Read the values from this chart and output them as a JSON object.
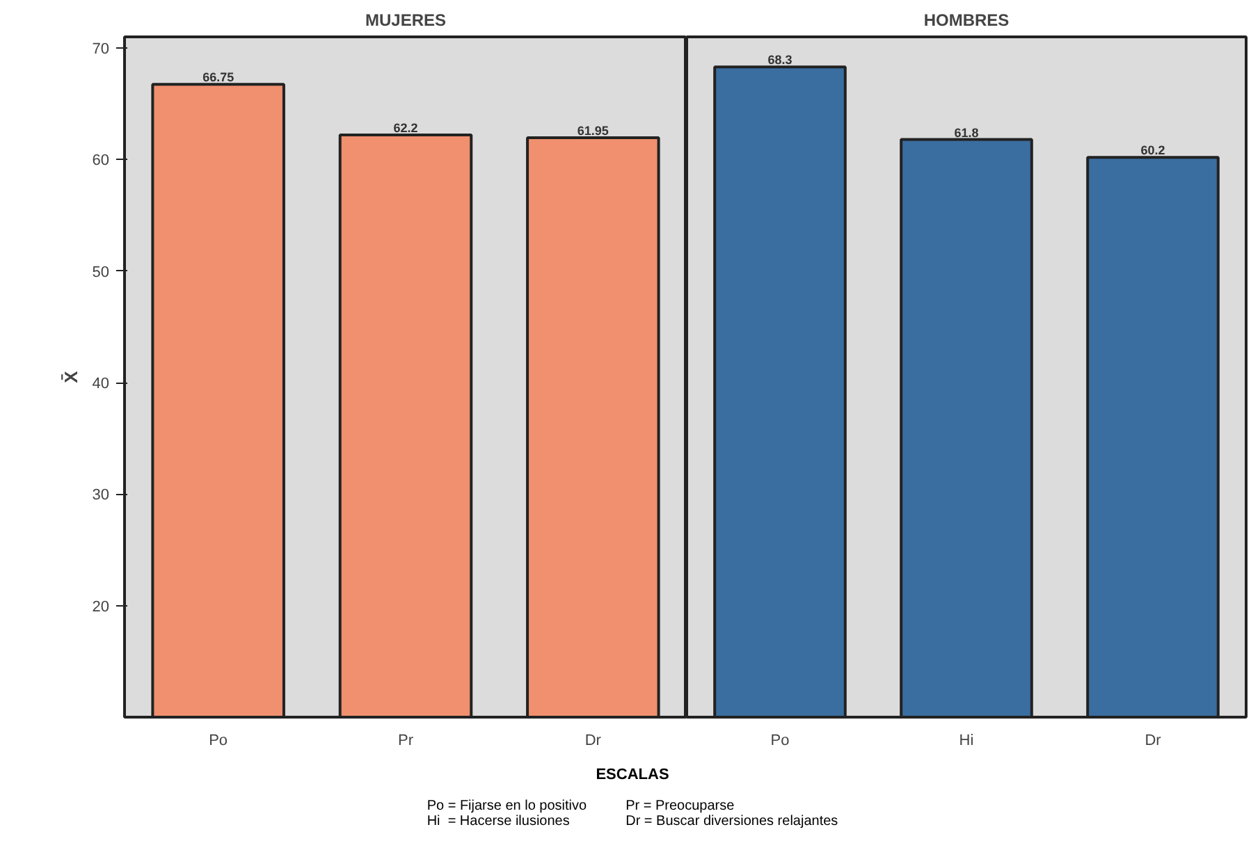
{
  "chart_data": [
    {
      "type": "bar",
      "title": "MUJERES",
      "ylabel": "X̄",
      "categories": [
        "Po",
        "Pr",
        "Dr"
      ],
      "values": [
        66.75,
        62.2,
        61.95
      ],
      "color": "#f0906e",
      "ylim": [
        10,
        71
      ],
      "yticks": [
        20,
        30,
        40,
        50,
        60,
        70
      ],
      "data_labels": true,
      "grid": false
    },
    {
      "type": "bar",
      "title": "HOMBRES",
      "categories": [
        "Po",
        "Hi",
        "Dr"
      ],
      "values": [
        68.3,
        61.8,
        60.2
      ],
      "color": "#3a6ea0",
      "ylim": [
        10,
        71
      ],
      "yticks": [
        20,
        30,
        40,
        50,
        60,
        70
      ],
      "data_labels": true,
      "grid": false,
      "tick_labels": "x",
      "xlabel": "ESCALAS",
      "annotations": [
        "Po = Fijarse en lo positivo",
        "Pr = Preocuparse",
        "Hi  = Hacerse ilusiones",
        "Dr = Buscar diversiones relajantes"
      ]
    }
  ]
}
